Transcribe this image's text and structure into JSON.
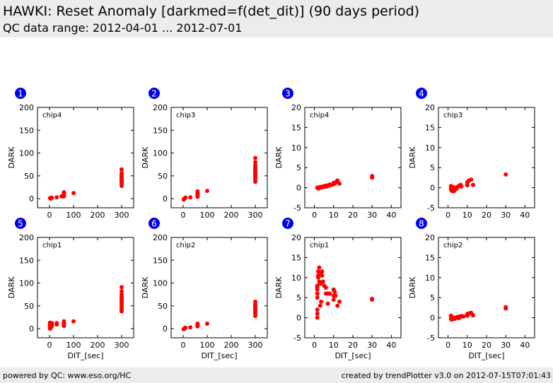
{
  "header": {
    "title": "HAWKI: Reset Anomaly [darkmed=f(det_dit)] (90 days period)",
    "subtitle": "QC data range: 2012-04-01 ... 2012-07-01"
  },
  "footer": {
    "left": "powered by QC: www.eso.org/HC",
    "right": "created by trendPlotter v3.0 on 2012-07-15T07:01:43"
  },
  "colors": {
    "points": "#ff0000",
    "badge": "#0000ee",
    "header_bg": "#ececec"
  },
  "chart_data": [
    {
      "number": "1",
      "label": "chip4",
      "type": "scatter",
      "xlabel": "",
      "ylabel": "DARK",
      "xlim": [
        -50,
        350
      ],
      "ylim": [
        -20,
        200
      ],
      "xticks": [
        0,
        100,
        200,
        300
      ],
      "yticks": [
        0,
        50,
        100,
        150,
        200
      ],
      "x": [
        2,
        5,
        8,
        10,
        30,
        50,
        60,
        60,
        60,
        60,
        60,
        100,
        300,
        300,
        300,
        300,
        300,
        300,
        300,
        300,
        300,
        300
      ],
      "y": [
        1,
        0,
        1,
        2,
        3,
        5,
        5,
        8,
        10,
        12,
        14,
        12,
        28,
        32,
        35,
        38,
        42,
        45,
        48,
        52,
        56,
        64
      ]
    },
    {
      "number": "2",
      "label": "chip3",
      "type": "scatter",
      "xlabel": "",
      "ylabel": "DARK",
      "xlim": [
        -50,
        350
      ],
      "ylim": [
        -20,
        200
      ],
      "xticks": [
        0,
        100,
        200,
        300
      ],
      "yticks": [
        0,
        50,
        100,
        150,
        200
      ],
      "x": [
        2,
        5,
        8,
        10,
        30,
        60,
        60,
        60,
        60,
        60,
        100,
        300,
        300,
        300,
        300,
        300,
        300,
        300,
        300,
        300,
        300,
        300
      ],
      "y": [
        -2,
        0,
        1,
        2,
        3,
        4,
        7,
        10,
        13,
        16,
        17,
        37,
        42,
        47,
        52,
        56,
        60,
        64,
        68,
        73,
        80,
        89
      ]
    },
    {
      "number": "3",
      "label": "chip4",
      "type": "scatter",
      "xlabel": "",
      "ylabel": "DARK",
      "xlim": [
        -5,
        45
      ],
      "ylim": [
        -5,
        20
      ],
      "xticks": [
        0,
        10,
        20,
        30,
        40
      ],
      "yticks": [
        -5,
        0,
        5,
        10,
        15,
        20
      ],
      "x": [
        1.5,
        2,
        2.5,
        3,
        3.5,
        4,
        4.5,
        5,
        5.5,
        6,
        6.5,
        7,
        7.5,
        8,
        9,
        10,
        10,
        10.5,
        11,
        11.5,
        12,
        13,
        30,
        30
      ],
      "y": [
        0,
        -0.2,
        0.1,
        0,
        0.2,
        0.1,
        0.3,
        0.2,
        0.4,
        0.5,
        0.3,
        0.6,
        0.5,
        0.8,
        0.7,
        0.9,
        1.2,
        1.0,
        1.3,
        1.5,
        1.8,
        1.0,
        2.5,
        2.9
      ]
    },
    {
      "number": "4",
      "label": "chip3",
      "type": "scatter",
      "xlabel": "",
      "ylabel": "DARK",
      "xlim": [
        -5,
        45
      ],
      "ylim": [
        -5,
        20
      ],
      "xticks": [
        0,
        10,
        20,
        30,
        40
      ],
      "yticks": [
        -5,
        0,
        5,
        10,
        15,
        20
      ],
      "x": [
        1.5,
        1.5,
        2,
        2,
        2.5,
        3,
        3,
        3.5,
        4,
        4.5,
        5,
        5.5,
        6,
        6.5,
        7,
        10,
        10,
        10.5,
        11,
        12,
        13,
        30
      ],
      "y": [
        0.4,
        -0.4,
        -0.2,
        -0.8,
        0.2,
        -0.5,
        -0.9,
        0,
        -0.4,
        -0.2,
        0.2,
        0.4,
        0.5,
        0.7,
        0.3,
        0.6,
        1.3,
        1.6,
        1.8,
        2.0,
        0.7,
        3.3
      ]
    },
    {
      "number": "5",
      "label": "chip1",
      "type": "scatter",
      "xlabel": "DIT_[sec]",
      "ylabel": "DARK",
      "xlim": [
        -50,
        350
      ],
      "ylim": [
        -20,
        200
      ],
      "xticks": [
        0,
        100,
        200,
        300
      ],
      "yticks": [
        0,
        50,
        100,
        150,
        200
      ],
      "x": [
        2,
        2,
        2,
        2,
        2,
        5,
        5,
        8,
        8,
        10,
        10,
        30,
        30,
        60,
        60,
        60,
        60,
        100,
        300,
        300,
        300,
        300,
        300,
        300,
        300,
        300,
        300,
        300,
        300
      ],
      "y": [
        0,
        3,
        6,
        9,
        13,
        2,
        8,
        4,
        10,
        7,
        12,
        9,
        12,
        6,
        9,
        12,
        16,
        16,
        38,
        43,
        48,
        53,
        57,
        61,
        65,
        70,
        75,
        82,
        91
      ]
    },
    {
      "number": "6",
      "label": "chip2",
      "type": "scatter",
      "xlabel": "DIT_[sec]",
      "ylabel": "DARK",
      "xlim": [
        -50,
        350
      ],
      "ylim": [
        -20,
        200
      ],
      "xticks": [
        0,
        100,
        200,
        300
      ],
      "yticks": [
        0,
        50,
        100,
        150,
        200
      ],
      "x": [
        2,
        5,
        8,
        10,
        30,
        60,
        60,
        60,
        100,
        300,
        300,
        300,
        300,
        300,
        300,
        300,
        300
      ],
      "y": [
        -1,
        0,
        1,
        2,
        3,
        5,
        8,
        11,
        11,
        28,
        32,
        36,
        40,
        44,
        48,
        53,
        59
      ]
    },
    {
      "number": "7",
      "label": "chip1",
      "type": "scatter",
      "xlabel": "DIT_[sec]",
      "ylabel": "DARK",
      "xlim": [
        -5,
        45
      ],
      "ylim": [
        -5,
        20
      ],
      "xticks": [
        0,
        10,
        20,
        30,
        40
      ],
      "yticks": [
        -5,
        0,
        5,
        10,
        15,
        20
      ],
      "x": [
        1.5,
        1.5,
        1.5,
        1.5,
        1.5,
        1.5,
        1.5,
        1.5,
        2,
        2,
        2,
        2.5,
        2.5,
        3,
        3,
        3.5,
        3.5,
        4,
        4,
        4.5,
        5,
        6,
        6,
        7,
        7,
        8,
        10,
        10,
        10,
        10.5,
        11,
        12,
        13,
        30,
        30
      ],
      "y": [
        0,
        1,
        2,
        5,
        6,
        7,
        7.5,
        8,
        10,
        10.5,
        11.5,
        9,
        12.5,
        3,
        8.5,
        4,
        11,
        10.5,
        11.5,
        9,
        8,
        6,
        7.5,
        3.5,
        6,
        6,
        4.5,
        5.5,
        7,
        6.5,
        5.5,
        3,
        4,
        4.5,
        4.7
      ]
    },
    {
      "number": "8",
      "label": "chip2",
      "type": "scatter",
      "xlabel": "DIT_[sec]",
      "ylabel": "DARK",
      "xlim": [
        -5,
        45
      ],
      "ylim": [
        -5,
        20
      ],
      "xticks": [
        0,
        10,
        20,
        30,
        40
      ],
      "yticks": [
        -5,
        0,
        5,
        10,
        15,
        20
      ],
      "x": [
        1.5,
        1.5,
        2,
        2,
        2.5,
        3,
        3.5,
        4,
        4.5,
        5,
        5.5,
        6,
        6.5,
        7,
        8,
        10,
        10,
        10.5,
        11,
        12,
        13,
        30,
        30
      ],
      "y": [
        0.5,
        -0.3,
        0,
        -0.5,
        -0.2,
        0,
        -0.3,
        0,
        0.1,
        0.2,
        -0.1,
        0.3,
        0.2,
        0.4,
        0.3,
        0.5,
        0.9,
        1.0,
        1.1,
        1.2,
        0.6,
        2.3,
        2.6
      ]
    }
  ]
}
